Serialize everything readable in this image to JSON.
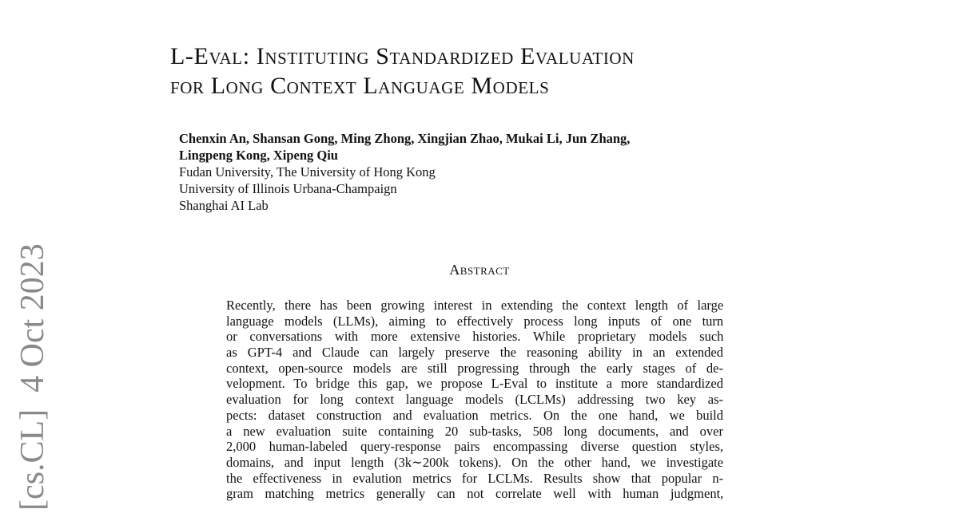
{
  "arxiv_stamp": "[cs.CL]  4 Oct 2023",
  "title": {
    "line1": "L-Eval:  Instituting Standardized Evaluation",
    "line2": "for Long Context Language Models"
  },
  "authors": {
    "line1": "Chenxin An, Shansan Gong, Ming Zhong, Xingjian Zhao, Mukai Li, Jun Zhang,",
    "line2": "Lingpeng Kong, Xipeng Qiu",
    "affiliations": [
      "Fudan University, The University of Hong Kong",
      "University of Illinois Urbana-Champaign",
      "Shanghai AI Lab"
    ]
  },
  "abstract": {
    "heading": "Abstract",
    "lines": [
      "Recently, there has been growing interest in extending the context length of large",
      "language models (LLMs), aiming to effectively process long inputs of one turn",
      "or conversations with more extensive histories.  While proprietary models such",
      "as GPT-4 and Claude can largely preserve the reasoning ability in an extended",
      "context, open-source models are still progressing through the early stages of de-",
      "velopment. To bridge this gap, we propose L-Eval to institute a more standardized",
      "evaluation for long context language models (LCLMs) addressing two key as-",
      "pects: dataset construction and evaluation metrics.  On the one hand, we build",
      "a new evaluation suite containing 20 sub-tasks, 508 long documents, and over",
      "2,000 human-labeled query-response pairs encompassing diverse question styles,",
      "domains, and input length (3k∼200k tokens).  On the other hand, we investigate",
      "the effectiveness in evalution metrics for LCLMs.  Results show that popular n-",
      "gram matching metrics generally can not correlate well with human judgment,"
    ]
  }
}
